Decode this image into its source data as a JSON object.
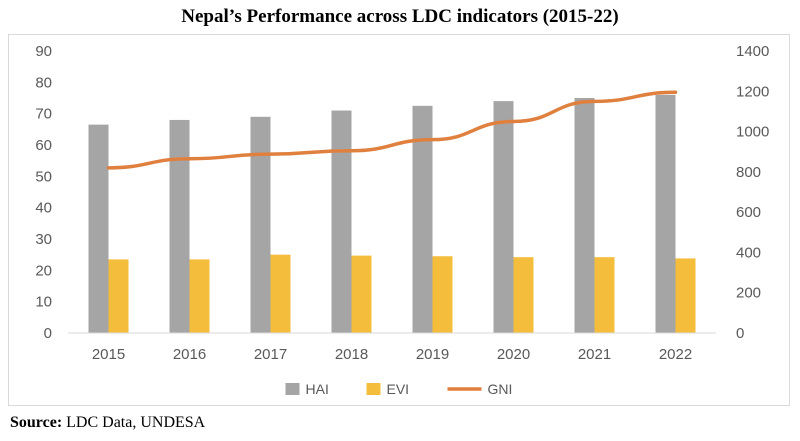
{
  "chart_data": {
    "type": "bar",
    "title": "Nepal’s Performance across LDC indicators (2015-22)",
    "categories": [
      "2015",
      "2016",
      "2017",
      "2018",
      "2019",
      "2020",
      "2021",
      "2022"
    ],
    "series": [
      {
        "name": "HAI",
        "type": "bar",
        "axis": "left",
        "color": "#a5a5a5",
        "values": [
          66.5,
          68,
          69,
          71,
          72.5,
          74,
          75,
          76
        ]
      },
      {
        "name": "EVI",
        "type": "bar",
        "axis": "left",
        "color": "#f5bd3c",
        "values": [
          23.5,
          23.5,
          25,
          24.7,
          24.5,
          24.2,
          24.2,
          23.8
        ]
      },
      {
        "name": "GNI",
        "type": "line",
        "axis": "right",
        "color": "#e0803f",
        "values": [
          820,
          865,
          888,
          905,
          960,
          1050,
          1150,
          1195
        ]
      }
    ],
    "y_left": {
      "ylim": [
        0,
        90
      ],
      "ticks": [
        "0",
        "10",
        "20",
        "30",
        "40",
        "50",
        "60",
        "70",
        "80",
        "90"
      ]
    },
    "y_right": {
      "ylim": [
        0,
        1400
      ],
      "ticks": [
        "0",
        "200",
        "400",
        "600",
        "800",
        "1000",
        "1200",
        "1400"
      ]
    },
    "xlabel": "",
    "ylabel": "",
    "grid": false,
    "legend_position": "bottom"
  },
  "source": {
    "label": "Source:",
    "text": " LDC Data, UNDESA"
  }
}
